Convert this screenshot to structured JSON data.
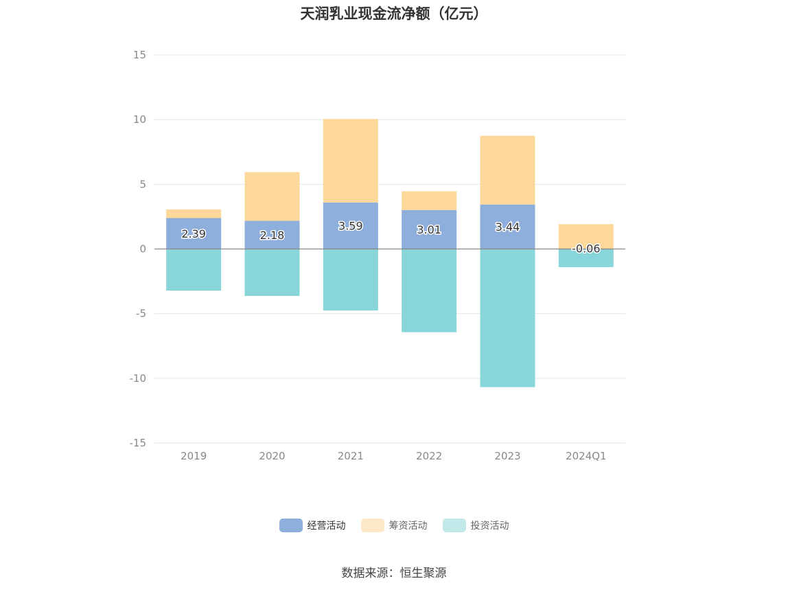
{
  "chart_data": {
    "type": "bar",
    "title": "天润乳业现金流净额（亿元）",
    "categories": [
      "2019",
      "2020",
      "2021",
      "2022",
      "2023",
      "2024Q1"
    ],
    "series": [
      {
        "name": "经营活动",
        "color": "#8eaedb",
        "values": [
          2.39,
          2.18,
          3.59,
          3.01,
          3.44,
          -0.06
        ],
        "show_labels": true
      },
      {
        "name": "筹资活动",
        "color": "#fed89a",
        "values": [
          0.67,
          3.76,
          6.46,
          1.45,
          5.31,
          1.92
        ],
        "show_labels": false
      },
      {
        "name": "投资活动",
        "color": "#88d6d9",
        "values": [
          -3.22,
          -3.63,
          -4.75,
          -6.43,
          -10.68,
          -1.34
        ],
        "show_labels": false
      }
    ],
    "ylim": [
      -15,
      15
    ],
    "yticks": [
      15,
      10,
      5,
      0,
      -5,
      -10,
      -15
    ],
    "grid": true,
    "stacked": true,
    "legend_position": "bottom",
    "legend_colors": [
      "#8eaedb",
      "#fde9c9",
      "#c3e8ea"
    ]
  },
  "source_text": "数据来源：恒生聚源"
}
